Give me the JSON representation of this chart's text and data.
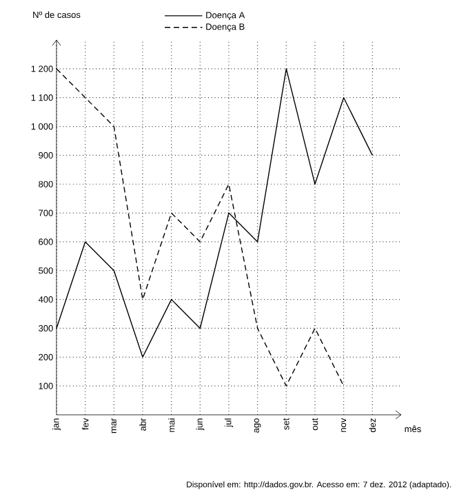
{
  "chart_data": {
    "type": "line",
    "categories": [
      "jan",
      "fev",
      "mar",
      "abr",
      "mai",
      "jun",
      "jul",
      "ago",
      "set",
      "out",
      "nov",
      "dez"
    ],
    "series": [
      {
        "name": "Doença A",
        "color": "#000000",
        "line_style": "solid",
        "values": [
          300,
          600,
          500,
          200,
          400,
          300,
          700,
          600,
          1200,
          800,
          1100,
          900
        ]
      },
      {
        "name": "Doença B",
        "color": "#000000",
        "line_style": "dashed",
        "values": [
          1200,
          1100,
          1000,
          400,
          700,
          600,
          800,
          300,
          100,
          300,
          100,
          null
        ]
      }
    ],
    "ylim": [
      0,
      1300
    ],
    "yticks": [
      100,
      200,
      300,
      400,
      500,
      600,
      700,
      800,
      900,
      {
        "value": 1000,
        "label": "1 000"
      },
      {
        "value": 1100,
        "label": "1 100"
      },
      {
        "value": 1200,
        "label": "1 200"
      }
    ],
    "xlabel": "mês",
    "ylabel": "Nº de casos",
    "annotations": [
      "Disponível em: http://dados.gov.br. Acesso em: 7 dez. 2012 (adaptado)."
    ],
    "grid": true,
    "legend": "top"
  }
}
